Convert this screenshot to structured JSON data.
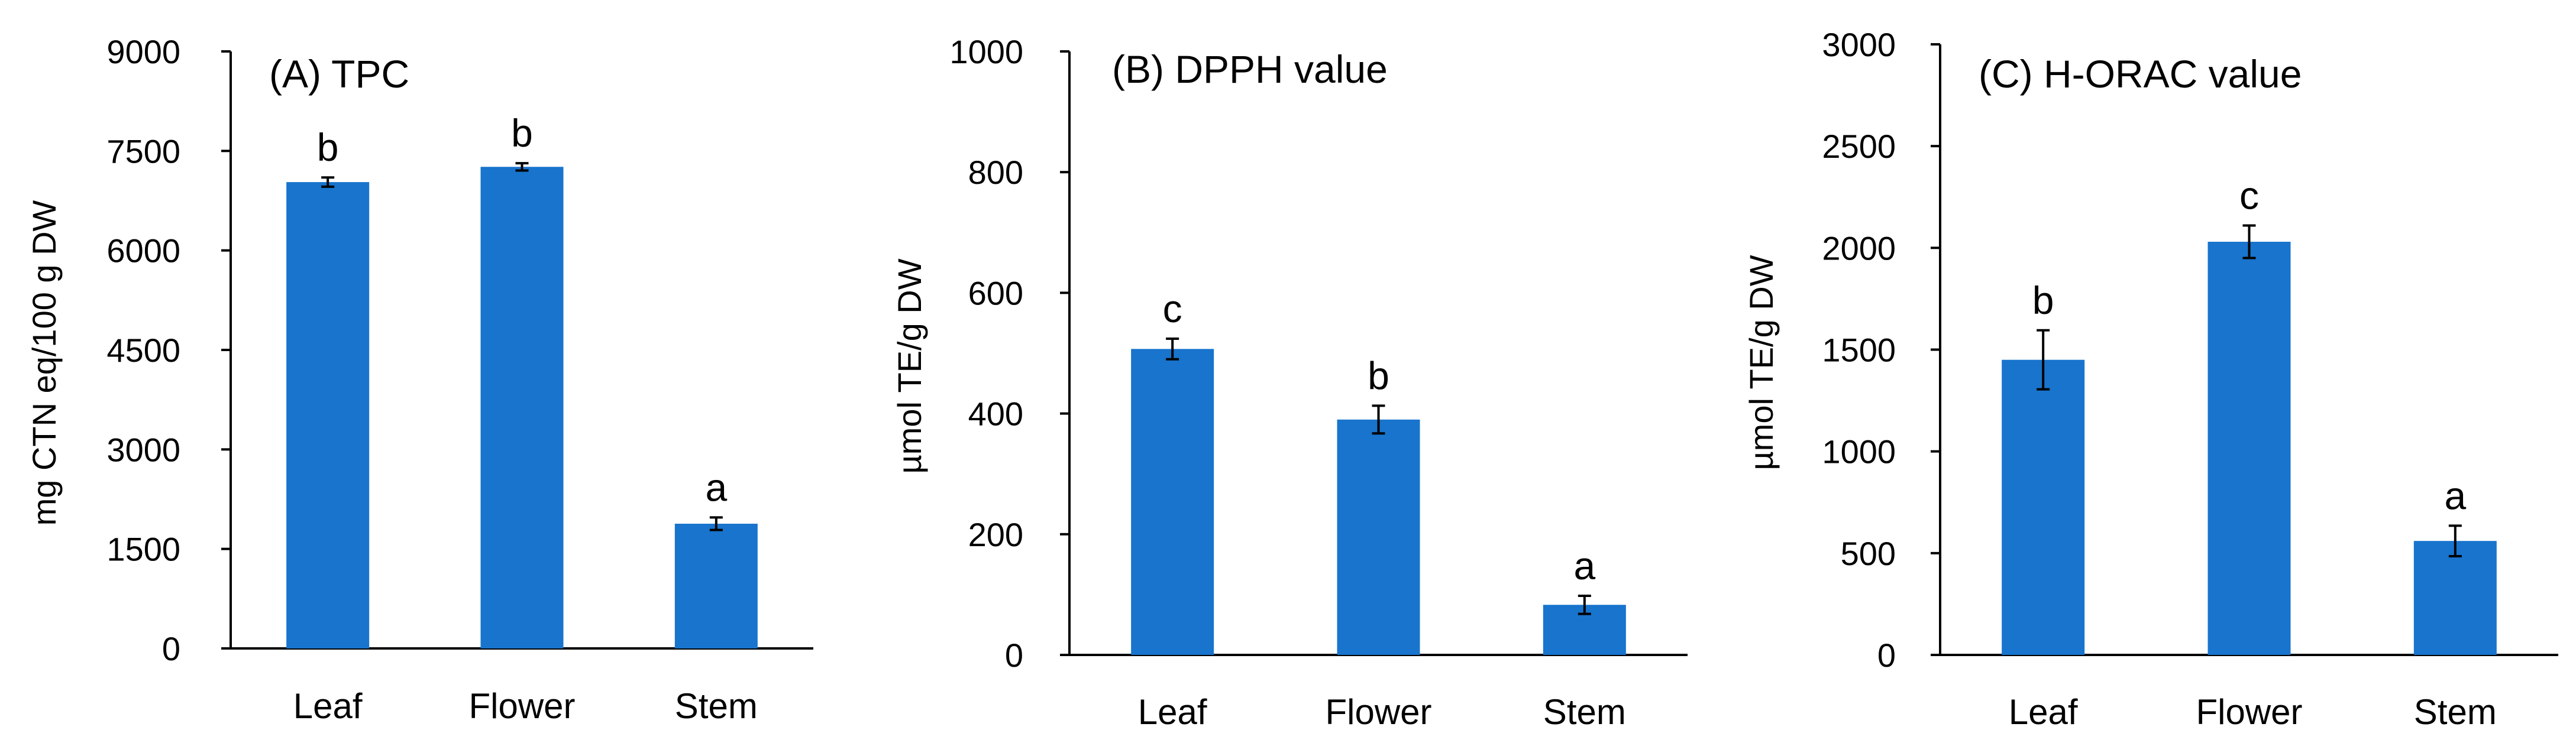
{
  "colors": {
    "bar": "#1874CD",
    "axis": "#000000"
  },
  "chart_data": [
    {
      "type": "bar",
      "title": "(A) TPC",
      "xlabel": "",
      "ylabel": "mg CTN eq/100 g DW",
      "ylim": [
        0,
        9000
      ],
      "yticks": [
        0,
        1500,
        3000,
        4500,
        6000,
        7500,
        9000
      ],
      "ytick_labels": [
        "0",
        "1500",
        "3000",
        "4500",
        "6000",
        "7500",
        "9000"
      ],
      "categories": [
        "Leaf",
        "Flower",
        "Stem"
      ],
      "values": [
        7030,
        7260,
        1880
      ],
      "errors": [
        70,
        55,
        95
      ],
      "annotations": [
        "b",
        "b",
        "a"
      ],
      "grid": false
    },
    {
      "type": "bar",
      "title": "(B) DPPH value",
      "xlabel": "",
      "ylabel": "µmol TE/g DW",
      "ylim": [
        0,
        1000
      ],
      "yticks": [
        0,
        200,
        400,
        600,
        800,
        1000
      ],
      "ytick_labels": [
        "0",
        "200",
        "400",
        "600",
        "800",
        "1000"
      ],
      "categories": [
        "Leaf",
        "Flower",
        "Stem"
      ],
      "values": [
        507,
        390,
        83
      ],
      "errors": [
        17,
        23,
        15
      ],
      "annotations": [
        "c",
        "b",
        "a"
      ],
      "grid": false
    },
    {
      "type": "bar",
      "title": "(C) H-ORAC value",
      "xlabel": "",
      "ylabel": "µmol TE/g DW",
      "ylim": [
        0,
        3000
      ],
      "yticks": [
        0,
        500,
        1000,
        1500,
        2000,
        2500,
        3000
      ],
      "ytick_labels": [
        "0",
        "500",
        "1000",
        "1500",
        "2000",
        "2500",
        "3000"
      ],
      "categories": [
        "Leaf",
        "Flower",
        "Stem"
      ],
      "values": [
        1450,
        2030,
        560
      ],
      "errors": [
        145,
        80,
        75
      ],
      "annotations": [
        "b",
        "c",
        "a"
      ],
      "grid": false
    }
  ]
}
